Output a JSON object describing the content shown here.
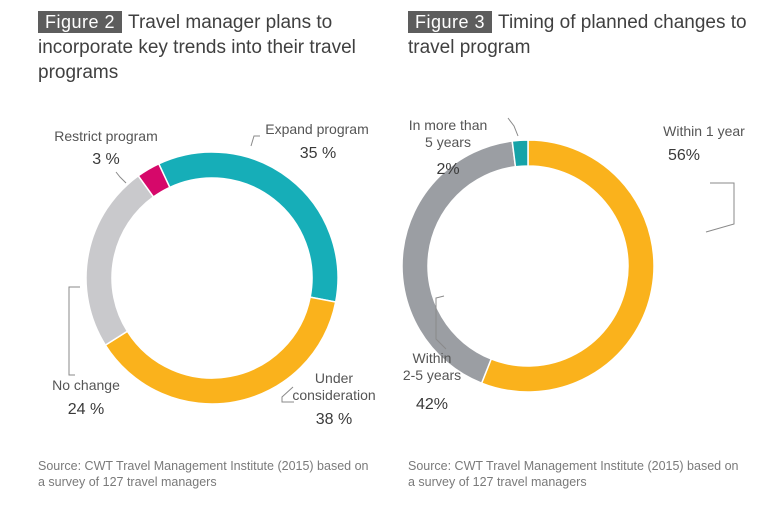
{
  "figures": [
    {
      "figure_label": "Figure 2",
      "title": "Travel manager plans to incorporate key trends into their travel programs",
      "source": "Source: CWT Travel Management Institute (2015) based on a survey of 127 travel managers"
    },
    {
      "figure_label": "Figure 3",
      "title": "Timing of planned changes to travel program",
      "source": "Source: CWT Travel Management Institute (2015) based on a survey of 127 travel managers"
    }
  ],
  "chart_data": [
    {
      "type": "pie",
      "title": "Travel manager plans to incorporate key trends into their travel programs",
      "donut": true,
      "start_angle_deg": -25,
      "direction": "clockwise",
      "slices": [
        {
          "label": "Expand program",
          "value": 35,
          "value_text": "35 %",
          "color": "#16aeb8"
        },
        {
          "label": "Under consideration",
          "value": 38,
          "value_text": "38 %",
          "color": "#fab21c"
        },
        {
          "label": "No change",
          "value": 24,
          "value_text": "24 %",
          "color": "#c9c9cc"
        },
        {
          "label": "Restrict program",
          "value": 3,
          "value_text": "3 %",
          "color": "#d6086a"
        }
      ]
    },
    {
      "type": "pie",
      "title": "Timing of planned changes to travel program",
      "donut": true,
      "start_angle_deg": 0,
      "direction": "clockwise",
      "slices": [
        {
          "label": "Within 1 year",
          "value": 56,
          "value_text": "56%",
          "color": "#fab21c"
        },
        {
          "label": "Within 2-5 years",
          "value": 42,
          "value_text": "42%",
          "color": "#9b9ea3"
        },
        {
          "label": "In more than 5 years",
          "value": 2,
          "value_text": "2%",
          "color": "#16a3a8"
        }
      ]
    }
  ]
}
